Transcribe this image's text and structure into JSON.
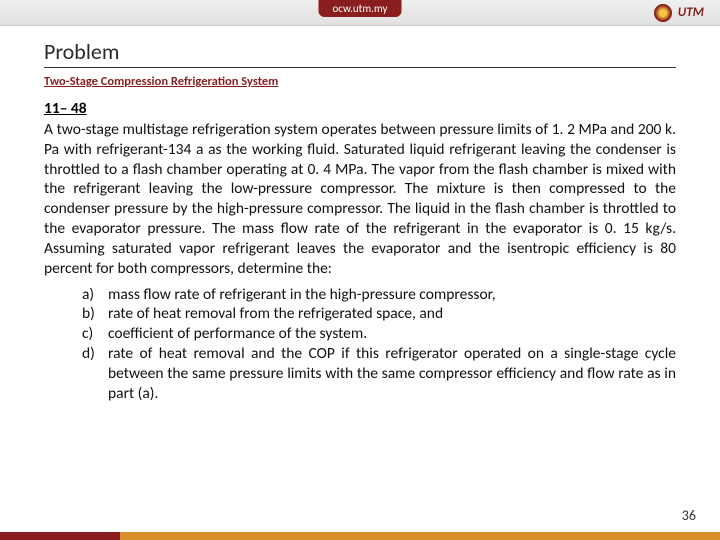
{
  "banner": {
    "center_label": "ocw.utm.my",
    "logo_text": "UTM"
  },
  "heading": "Problem",
  "subheading": "Two-Stage Compression Refrigeration System",
  "problem_number": "11– 48",
  "body": "A two-stage multistage refrigeration system operates between pressure limits of 1. 2 MPa and 200 k. Pa with refrigerant-134 a as the working fluid. Saturated liquid refrigerant leaving the condenser is throttled to a flash chamber operating at 0. 4 MPa. The vapor from the flash chamber is mixed with the refrigerant leaving the low-pressure compressor. The mixture is then compressed to the condenser pressure by the high-pressure compressor. The liquid in the flash chamber is throttled to the evaporator pressure. The mass flow rate of the refrigerant in the evaporator is 0. 15 kg/s. Assuming saturated vapor refrigerant leaves the evaporator and the isentropic efficiency is 80 percent for both compressors, determine the:",
  "items": [
    {
      "label": "a)",
      "text": "mass flow rate of refrigerant in the high-pressure compressor,"
    },
    {
      "label": "b)",
      "text": "rate of heat removal from the refrigerated space, and"
    },
    {
      "label": "c)",
      "text": "coefficient of performance of the system."
    },
    {
      "label": "d)",
      "text": "rate of heat removal and the COP if this refrigerator operated on a single-stage cycle between the same pressure limits with the same compressor efficiency and flow rate as in part (a)."
    }
  ],
  "page_number": "36",
  "colors": {
    "accent": "#8a1e1e",
    "footer": "#d98e2b",
    "text": "#111111",
    "bg": "#ffffff"
  }
}
